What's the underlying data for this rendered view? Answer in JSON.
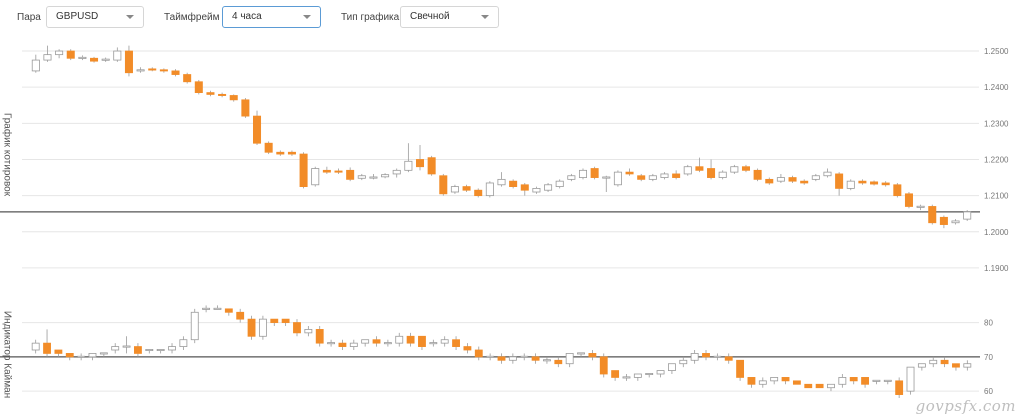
{
  "toolbar": {
    "pair_label": "Пара",
    "pair_value": "GBPUSD",
    "timeframe_label": "Таймфрейм",
    "timeframe_value": "4 часа",
    "chart_type_label": "Тип графика",
    "chart_type_value": "Свечной"
  },
  "colors": {
    "bearish": "#f28c28",
    "bullish": "#ffffff",
    "candle_border": "#9a9a9a",
    "grid": "#e6e6e6",
    "level_line": "#555555",
    "accent": "#5b9bd5"
  },
  "watermark": "govpsfx.com",
  "chart_data": [
    {
      "type": "candlestick",
      "label": "График котировок",
      "ylim": [
        1.185,
        1.2525
      ],
      "yticks": [
        "1.2500",
        "1.2400",
        "1.2300",
        "1.2200",
        "1.2100",
        "1.2000",
        "1.1900"
      ],
      "grid": true,
      "level": 1.2055,
      "candles": [
        [
          1.2445,
          1.2475,
          1.244,
          1.249
        ],
        [
          1.2475,
          1.249,
          1.247,
          1.2515
        ],
        [
          1.249,
          1.25,
          1.248,
          1.2505
        ],
        [
          1.25,
          1.248,
          1.2475,
          1.2505
        ],
        [
          1.248,
          1.2482,
          1.2475,
          1.2488
        ],
        [
          1.248,
          1.2472,
          1.2468,
          1.2484
        ],
        [
          1.2475,
          1.2477,
          1.247,
          1.2482
        ],
        [
          1.2475,
          1.25,
          1.247,
          1.251
        ],
        [
          1.25,
          1.244,
          1.243,
          1.2515
        ],
        [
          1.2445,
          1.2448,
          1.244,
          1.2455
        ],
        [
          1.245,
          1.2448,
          1.2444,
          1.2455
        ],
        [
          1.2448,
          1.2445,
          1.244,
          1.2452
        ],
        [
          1.2445,
          1.2435,
          1.243,
          1.245
        ],
        [
          1.2435,
          1.2415,
          1.241,
          1.244
        ],
        [
          1.2415,
          1.2385,
          1.238,
          1.242
        ],
        [
          1.2385,
          1.238,
          1.2375,
          1.239
        ],
        [
          1.238,
          1.2377,
          1.2372,
          1.2385
        ],
        [
          1.2377,
          1.2365,
          1.236,
          1.238
        ],
        [
          1.2365,
          1.232,
          1.2315,
          1.237
        ],
        [
          1.232,
          1.2245,
          1.224,
          1.2335
        ],
        [
          1.2245,
          1.222,
          1.2215,
          1.225
        ],
        [
          1.222,
          1.2215,
          1.221,
          1.2225
        ],
        [
          1.222,
          1.2215,
          1.221,
          1.2225
        ],
        [
          1.2215,
          1.2125,
          1.212,
          1.222
        ],
        [
          1.213,
          1.2175,
          1.2125,
          1.218
        ],
        [
          1.217,
          1.2165,
          1.216,
          1.218
        ],
        [
          1.2168,
          1.2165,
          1.216,
          1.2175
        ],
        [
          1.217,
          1.2145,
          1.214,
          1.2178
        ],
        [
          1.2148,
          1.2155,
          1.2143,
          1.216
        ],
        [
          1.215,
          1.215,
          1.2145,
          1.216
        ],
        [
          1.2152,
          1.2158,
          1.2148,
          1.2162
        ],
        [
          1.216,
          1.217,
          1.215,
          1.2175
        ],
        [
          1.217,
          1.2195,
          1.2165,
          1.2245
        ],
        [
          1.22,
          1.218,
          1.217,
          1.224
        ],
        [
          1.2205,
          1.216,
          1.2155,
          1.221
        ],
        [
          1.2155,
          1.2105,
          1.21,
          1.216
        ],
        [
          1.211,
          1.2125,
          1.2105,
          1.213
        ],
        [
          1.2125,
          1.2115,
          1.211,
          1.213
        ],
        [
          1.2115,
          1.21,
          1.2095,
          1.212
        ],
        [
          1.21,
          1.2135,
          1.2095,
          1.214
        ],
        [
          1.213,
          1.2145,
          1.2125,
          1.2165
        ],
        [
          1.214,
          1.2125,
          1.212,
          1.2145
        ],
        [
          1.213,
          1.2115,
          1.21,
          1.2135
        ],
        [
          1.211,
          1.212,
          1.2105,
          1.2125
        ],
        [
          1.2115,
          1.213,
          1.211,
          1.2135
        ],
        [
          1.2125,
          1.214,
          1.212,
          1.2145
        ],
        [
          1.2145,
          1.2155,
          1.214,
          1.216
        ],
        [
          1.215,
          1.217,
          1.2145,
          1.2175
        ],
        [
          1.2175,
          1.215,
          1.2145,
          1.218
        ],
        [
          1.215,
          1.215,
          1.211,
          1.2155
        ],
        [
          1.213,
          1.2165,
          1.2125,
          1.217
        ],
        [
          1.2165,
          1.216,
          1.2155,
          1.2175
        ],
        [
          1.2155,
          1.2145,
          1.214,
          1.216
        ],
        [
          1.2145,
          1.2155,
          1.214,
          1.216
        ],
        [
          1.215,
          1.216,
          1.2145,
          1.2165
        ],
        [
          1.216,
          1.215,
          1.2145,
          1.217
        ],
        [
          1.216,
          1.218,
          1.2155,
          1.2185
        ],
        [
          1.218,
          1.217,
          1.2165,
          1.2205
        ],
        [
          1.2175,
          1.215,
          1.2145,
          1.22
        ],
        [
          1.215,
          1.2165,
          1.2145,
          1.217
        ],
        [
          1.2165,
          1.218,
          1.216,
          1.2185
        ],
        [
          1.218,
          1.217,
          1.2165,
          1.2185
        ],
        [
          1.217,
          1.2145,
          1.214,
          1.2175
        ],
        [
          1.2145,
          1.2135,
          1.213,
          1.215
        ],
        [
          1.214,
          1.215,
          1.2135,
          1.216
        ],
        [
          1.215,
          1.214,
          1.2135,
          1.2155
        ],
        [
          1.214,
          1.2135,
          1.213,
          1.2145
        ],
        [
          1.2145,
          1.2155,
          1.214,
          1.216
        ],
        [
          1.2155,
          1.2165,
          1.215,
          1.2175
        ],
        [
          1.216,
          1.212,
          1.21,
          1.2165
        ],
        [
          1.212,
          1.214,
          1.2115,
          1.2145
        ],
        [
          1.214,
          1.2135,
          1.213,
          1.2145
        ],
        [
          1.2138,
          1.2132,
          1.2128,
          1.2142
        ],
        [
          1.2135,
          1.213,
          1.2125,
          1.214
        ],
        [
          1.213,
          1.21,
          1.2095,
          1.2135
        ],
        [
          1.2105,
          1.207,
          1.2065,
          1.211
        ],
        [
          1.2068,
          1.207,
          1.206,
          1.2075
        ],
        [
          1.207,
          1.2025,
          1.202,
          1.2075
        ],
        [
          1.204,
          1.202,
          1.201,
          1.2045
        ],
        [
          1.2025,
          1.203,
          1.202,
          1.2035
        ],
        [
          1.2035,
          1.2055,
          1.203,
          1.206
        ]
      ]
    },
    {
      "type": "candlestick",
      "label": "Индикатор Кайман",
      "ylim": [
        58,
        86
      ],
      "yticks": [
        "80",
        "70",
        "60"
      ],
      "grid": true,
      "level": 70,
      "candles": [
        [
          72,
          74,
          71,
          75
        ],
        [
          74,
          71,
          70,
          78
        ],
        [
          72,
          71,
          70,
          72
        ],
        [
          71,
          70,
          69,
          71
        ],
        [
          70,
          70,
          69,
          71
        ],
        [
          70,
          71,
          69,
          71
        ],
        [
          71,
          71,
          70,
          71
        ],
        [
          72,
          73,
          71,
          74
        ],
        [
          73,
          73,
          71,
          76
        ],
        [
          73,
          71,
          70,
          74
        ],
        [
          72,
          72,
          71,
          72
        ],
        [
          72,
          72,
          71,
          72
        ],
        [
          72,
          73,
          71,
          74
        ],
        [
          73,
          75,
          72,
          76
        ],
        [
          75,
          83,
          74,
          84
        ],
        [
          84,
          84,
          83,
          85
        ],
        [
          84,
          84,
          84,
          85
        ],
        [
          84,
          83,
          82,
          84
        ],
        [
          83,
          81,
          80,
          84
        ],
        [
          81,
          76,
          75,
          82
        ],
        [
          76,
          81,
          75,
          82
        ],
        [
          81,
          80,
          79,
          81
        ],
        [
          81,
          80,
          79,
          81
        ],
        [
          80,
          77,
          76,
          81
        ],
        [
          77,
          78,
          76,
          79
        ],
        [
          78,
          74,
          73,
          79
        ],
        [
          74,
          74,
          73,
          75
        ],
        [
          74,
          73,
          72,
          75
        ],
        [
          73,
          74,
          72,
          75
        ],
        [
          74,
          75,
          73,
          75
        ],
        [
          75,
          74,
          73,
          76
        ],
        [
          74,
          74,
          73,
          75
        ],
        [
          74,
          76,
          73,
          77
        ],
        [
          76,
          74,
          73,
          77
        ],
        [
          76,
          73,
          72,
          76
        ],
        [
          74,
          74,
          73,
          75
        ],
        [
          74,
          75,
          73,
          76
        ],
        [
          75,
          73,
          72,
          76
        ],
        [
          73,
          72,
          71,
          74
        ],
        [
          72,
          70,
          69,
          73
        ],
        [
          70,
          70,
          69,
          71
        ],
        [
          70,
          69,
          68,
          71
        ],
        [
          69,
          70,
          68,
          71
        ],
        [
          70,
          70,
          69,
          71
        ],
        [
          70,
          69,
          68,
          71
        ],
        [
          69,
          69,
          68,
          70
        ],
        [
          69,
          68,
          67,
          70
        ],
        [
          68,
          71,
          67,
          71
        ],
        [
          71,
          71,
          70,
          71
        ],
        [
          71,
          70,
          69,
          72
        ],
        [
          70,
          65,
          64,
          71
        ],
        [
          66,
          64,
          63,
          66
        ],
        [
          64,
          64,
          63,
          65
        ],
        [
          64,
          65,
          63,
          65
        ],
        [
          65,
          65,
          64,
          65
        ],
        [
          65,
          66,
          64,
          66
        ],
        [
          66,
          68,
          65,
          68
        ],
        [
          68,
          69,
          67,
          70
        ],
        [
          69,
          71,
          68,
          72
        ],
        [
          71,
          70,
          69,
          72
        ],
        [
          70,
          70,
          69,
          71
        ],
        [
          70,
          69,
          68,
          71
        ],
        [
          69,
          64,
          63,
          69
        ],
        [
          64,
          62,
          61,
          64
        ],
        [
          62,
          63,
          61,
          64
        ],
        [
          63,
          64,
          62,
          64
        ],
        [
          64,
          63,
          62,
          64
        ],
        [
          63,
          62,
          62,
          63
        ],
        [
          62,
          61,
          61,
          62
        ],
        [
          62,
          61,
          61,
          62
        ],
        [
          61,
          62,
          60,
          62
        ],
        [
          62,
          64,
          61,
          65
        ],
        [
          64,
          63,
          62,
          64
        ],
        [
          64,
          62,
          61,
          64
        ],
        [
          63,
          63,
          62,
          63
        ],
        [
          63,
          63,
          62,
          63
        ],
        [
          63,
          59,
          58,
          64
        ],
        [
          60,
          67,
          59,
          67
        ],
        [
          67,
          68,
          66,
          68
        ],
        [
          68,
          69,
          67,
          70
        ],
        [
          69,
          68,
          67,
          70
        ],
        [
          68,
          67,
          66,
          68
        ],
        [
          67,
          68,
          66,
          69
        ]
      ]
    }
  ]
}
